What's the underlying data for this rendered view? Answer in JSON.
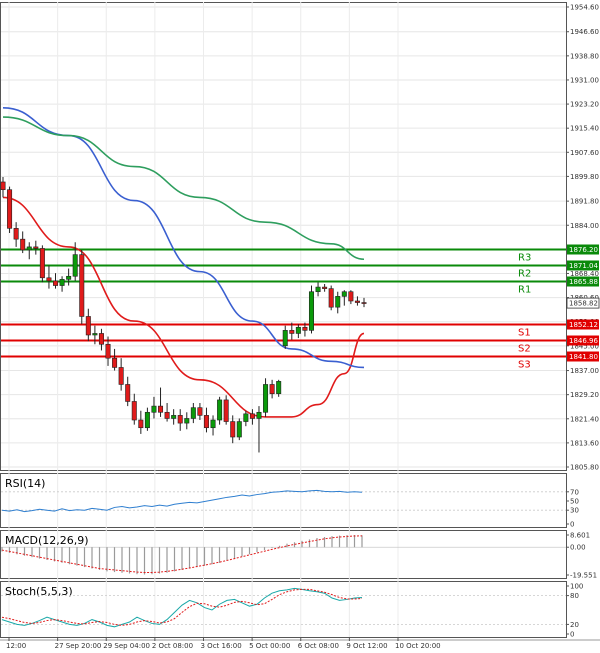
{
  "chart_data": {
    "type": "candlestick",
    "title": "",
    "x_tick_labels": [
      "12:00",
      "27 Sep 20:00",
      "29 Sep 04:00",
      "2 Oct 08:00",
      "3 Oct 16:00",
      "5 Oct 00:00",
      "6 Oct 08:00",
      "9 Oct 12:00",
      "10 Oct 20:00"
    ],
    "price_ticks": [
      "1954.60",
      "1946.60",
      "1938.80",
      "1931.00",
      "1923.20",
      "1915.40",
      "1907.60",
      "1899.80",
      "1891.80",
      "1884.00",
      "1876.20",
      "1868.40",
      "1860.60",
      "1852.80",
      "1845.00",
      "1837.00",
      "1829.20",
      "1821.40",
      "1813.60",
      "1805.80"
    ],
    "price_range": [
      1805.8,
      1954.6
    ],
    "current_price": "1858.82",
    "levels": [
      {
        "name": "R3",
        "value": 1876.2,
        "label": "1876.20",
        "color": "#0a8a0a"
      },
      {
        "name": "R2",
        "value": 1871.04,
        "label": "1871.04",
        "color": "#0a8a0a"
      },
      {
        "name": "R1",
        "value": 1865.88,
        "label": "1865.88",
        "color": "#0a8a0a"
      },
      {
        "name": "S1",
        "value": 1852.12,
        "label": "1852.12",
        "color": "#e00000"
      },
      {
        "name": "S2",
        "value": 1846.96,
        "label": "1846.96",
        "color": "#e00000"
      },
      {
        "name": "S3",
        "value": 1841.8,
        "label": "1841.80",
        "color": "#e00000"
      }
    ],
    "candles": [
      [
        1898.0,
        1899.6,
        1893.0,
        1895.5
      ],
      [
        1895.5,
        1896.5,
        1881.5,
        1883.0
      ],
      [
        1883.0,
        1885.0,
        1877.0,
        1879.5
      ],
      [
        1879.5,
        1882.0,
        1875.0,
        1876.0
      ],
      [
        1876.0,
        1878.5,
        1873.0,
        1877.0
      ],
      [
        1877.0,
        1879.0,
        1874.5,
        1876.5
      ],
      [
        1876.5,
        1877.5,
        1865.5,
        1867.0
      ],
      [
        1867.0,
        1871.0,
        1863.5,
        1866.0
      ],
      [
        1866.0,
        1868.5,
        1863.5,
        1864.5
      ],
      [
        1864.5,
        1867.5,
        1862.5,
        1866.5
      ],
      [
        1866.5,
        1870.0,
        1864.5,
        1867.5
      ],
      [
        1867.5,
        1878.5,
        1866.0,
        1874.5
      ],
      [
        1874.5,
        1876.0,
        1852.0,
        1854.5
      ],
      [
        1854.5,
        1857.0,
        1846.5,
        1848.5
      ],
      [
        1848.5,
        1851.5,
        1845.5,
        1849.0
      ],
      [
        1849.0,
        1850.5,
        1843.5,
        1845.5
      ],
      [
        1845.5,
        1848.0,
        1838.5,
        1841.0
      ],
      [
        1841.0,
        1844.0,
        1837.0,
        1838.0
      ],
      [
        1838.0,
        1841.0,
        1830.5,
        1832.5
      ],
      [
        1832.5,
        1835.0,
        1825.5,
        1827.0
      ],
      [
        1827.0,
        1829.5,
        1819.5,
        1821.0
      ],
      [
        1821.0,
        1824.0,
        1816.5,
        1818.5
      ],
      [
        1818.5,
        1825.0,
        1817.5,
        1823.5
      ],
      [
        1823.5,
        1828.5,
        1821.5,
        1825.5
      ],
      [
        1825.5,
        1831.5,
        1822.0,
        1823.5
      ],
      [
        1823.5,
        1826.5,
        1820.5,
        1821.5
      ],
      [
        1821.5,
        1824.5,
        1819.5,
        1822.5
      ],
      [
        1822.5,
        1824.5,
        1817.5,
        1820.0
      ],
      [
        1820.0,
        1823.5,
        1818.0,
        1821.5
      ],
      [
        1821.5,
        1826.5,
        1820.0,
        1825.0
      ],
      [
        1825.0,
        1826.5,
        1821.0,
        1822.5
      ],
      [
        1822.5,
        1825.0,
        1817.0,
        1818.5
      ],
      [
        1818.5,
        1822.5,
        1816.0,
        1821.0
      ],
      [
        1821.0,
        1828.5,
        1819.5,
        1827.5
      ],
      [
        1827.5,
        1829.0,
        1819.5,
        1820.5
      ],
      [
        1820.5,
        1822.5,
        1813.5,
        1815.5
      ],
      [
        1815.5,
        1821.5,
        1814.5,
        1820.5
      ],
      [
        1820.5,
        1824.0,
        1819.0,
        1823.0
      ],
      [
        1823.0,
        1824.5,
        1819.5,
        1821.5
      ],
      [
        1821.5,
        1825.5,
        1810.5,
        1823.5
      ],
      [
        1823.5,
        1834.5,
        1822.0,
        1832.5
      ],
      [
        1832.5,
        1834.0,
        1828.0,
        1829.5
      ],
      [
        1829.5,
        1834.0,
        1828.5,
        1833.5
      ],
      [
        1845.0,
        1851.5,
        1844.0,
        1850.0
      ],
      [
        1850.0,
        1852.5,
        1847.0,
        1849.0
      ],
      [
        1849.0,
        1852.0,
        1847.5,
        1851.0
      ],
      [
        1851.0,
        1852.5,
        1848.0,
        1850.0
      ],
      [
        1850.0,
        1864.5,
        1849.0,
        1862.5
      ],
      [
        1862.5,
        1865.5,
        1861.0,
        1864.0
      ],
      [
        1864.0,
        1865.0,
        1862.5,
        1863.5
      ],
      [
        1863.5,
        1864.5,
        1856.5,
        1857.5
      ],
      [
        1857.5,
        1862.5,
        1855.5,
        1861.0
      ],
      [
        1861.0,
        1863.0,
        1858.0,
        1862.5
      ],
      [
        1862.5,
        1863.0,
        1858.5,
        1859.5
      ],
      [
        1859.5,
        1861.0,
        1858.0,
        1859.0
      ],
      [
        1859.0,
        1860.5,
        1857.5,
        1858.82
      ]
    ],
    "ma_series": [
      {
        "color": "#e01b1b",
        "points": [
          [
            0,
            1893
          ],
          [
            10,
            1877
          ],
          [
            20,
            1853
          ],
          [
            30,
            1834
          ],
          [
            40,
            1822
          ],
          [
            44,
            1822
          ],
          [
            48,
            1826
          ],
          [
            52,
            1836
          ],
          [
            55,
            1849
          ]
        ]
      },
      {
        "color": "#3a5fd0",
        "points": [
          [
            0,
            1922
          ],
          [
            10,
            1913
          ],
          [
            20,
            1892
          ],
          [
            30,
            1869
          ],
          [
            38,
            1853
          ],
          [
            44,
            1844
          ],
          [
            50,
            1840
          ],
          [
            55,
            1838
          ]
        ]
      },
      {
        "color": "#2e9e5e",
        "points": [
          [
            0,
            1919
          ],
          [
            10,
            1913
          ],
          [
            20,
            1903
          ],
          [
            30,
            1893
          ],
          [
            40,
            1885
          ],
          [
            50,
            1878
          ],
          [
            55,
            1873
          ]
        ]
      }
    ],
    "indicators": [
      {
        "name": "RSI(14)",
        "ticks": [
          "70",
          "50",
          "30",
          "0"
        ],
        "range": [
          0,
          100
        ],
        "values": [
          30,
          28,
          31,
          27,
          29,
          32,
          30,
          28,
          33,
          29,
          31,
          30,
          34,
          32,
          30,
          36,
          38,
          35,
          37,
          40,
          38,
          41,
          39,
          43,
          45,
          47,
          46,
          49,
          52,
          55,
          58,
          60,
          63,
          61,
          64,
          66,
          69,
          70,
          72,
          71,
          70,
          72,
          73,
          71,
          70,
          71,
          69,
          70,
          69
        ]
      },
      {
        "name": "MACD(12,26,9)",
        "ticks": [
          "8.601",
          "0.00",
          "-19.551"
        ],
        "range": [
          -19.551,
          8.601
        ],
        "histogram": [
          -3,
          -4,
          -5,
          -6,
          -7,
          -8,
          -9,
          -10,
          -11,
          -12,
          -13,
          -14,
          -15,
          -16,
          -17,
          -17.5,
          -18,
          -18.5,
          -19,
          -19.2,
          -19,
          -18.5,
          -18,
          -17,
          -16,
          -15,
          -14,
          -13,
          -12,
          -11,
          -9.5,
          -8,
          -6.5,
          -5,
          -3.5,
          -2,
          -0.5,
          1,
          2.5,
          3.5,
          4.5,
          5.5,
          6.5,
          7.2,
          7.8,
          8.2,
          8.5,
          8.6,
          8.4
        ],
        "signal": [
          -2,
          -3,
          -4,
          -5,
          -6,
          -7,
          -8,
          -9,
          -10,
          -11,
          -12,
          -13,
          -14,
          -15,
          -15.5,
          -16,
          -16.5,
          -17,
          -17.5,
          -17.8,
          -17.8,
          -17.5,
          -17,
          -16.3,
          -15.5,
          -14.6,
          -13.6,
          -12.6,
          -11.6,
          -10.5,
          -9.3,
          -8,
          -6.7,
          -5.4,
          -4.1,
          -2.8,
          -1.5,
          -0.3,
          0.9,
          2,
          3,
          4,
          5,
          5.9,
          6.6,
          7.2,
          7.6,
          7.9,
          8
        ]
      },
      {
        "name": "Stoch(5,5,3)",
        "ticks": [
          "100",
          "80",
          "20",
          "0"
        ],
        "range": [
          0,
          100
        ],
        "k": [
          30,
          25,
          20,
          18,
          22,
          28,
          35,
          30,
          25,
          20,
          18,
          22,
          30,
          25,
          18,
          15,
          20,
          25,
          35,
          28,
          22,
          20,
          30,
          45,
          60,
          70,
          65,
          55,
          50,
          62,
          70,
          72,
          65,
          58,
          62,
          75,
          85,
          90,
          92,
          95,
          93,
          90,
          88,
          85,
          75,
          70,
          72,
          75,
          76
        ],
        "d": [
          35,
          32,
          28,
          24,
          22,
          24,
          28,
          30,
          28,
          25,
          22,
          21,
          24,
          26,
          24,
          20,
          18,
          20,
          25,
          28,
          26,
          23,
          25,
          32,
          45,
          57,
          64,
          63,
          58,
          56,
          60,
          66,
          68,
          65,
          61,
          63,
          72,
          82,
          88,
          92,
          93,
          93,
          90,
          87,
          82,
          76,
          73,
          73,
          74
        ]
      }
    ]
  }
}
